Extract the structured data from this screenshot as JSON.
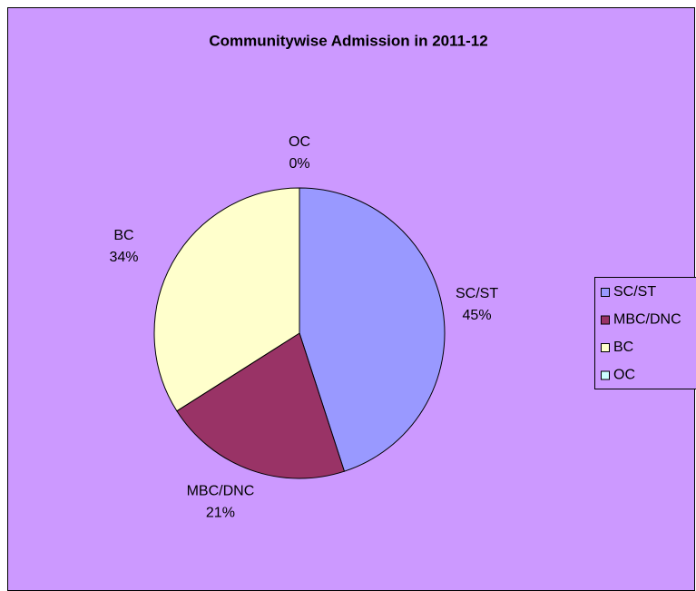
{
  "chart_data": {
    "type": "pie",
    "title": "Communitywise Admission in 2011-12",
    "categories": [
      "SC/ST",
      "MBC/DNC",
      "BC",
      "OC"
    ],
    "values": [
      45,
      21,
      34,
      0
    ],
    "value_labels": [
      "45%",
      "21%",
      "34%",
      "0%"
    ],
    "colors": [
      "#9999ff",
      "#993366",
      "#ffffcc",
      "#ccffff"
    ],
    "legend": "right"
  }
}
